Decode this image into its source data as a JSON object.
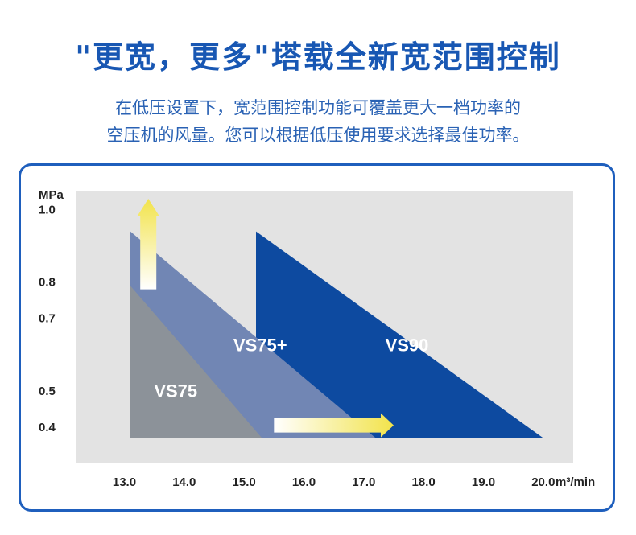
{
  "header": {
    "title": "\"更宽，更多\"塔载全新宽范围控制",
    "desc_line1": "在低压设置下，宽范围控制功能可覆盖更大一档功率的",
    "desc_line2": "空压机的风量。您可以根据低压使用要求选择最佳功率。"
  },
  "chart_data": {
    "type": "area",
    "ylabel": "MPa",
    "xlabel": "m³/min",
    "xlim": [
      12.2,
      20.5
    ],
    "ylim": [
      0.3,
      1.05
    ],
    "x_ticks": [
      13.0,
      14.0,
      15.0,
      16.0,
      17.0,
      18.0,
      19.0,
      20.0
    ],
    "x_tick_labels": [
      "13.0",
      "14.0",
      "15.0",
      "16.0",
      "17.0",
      "18.0",
      "19.0",
      "20.0"
    ],
    "y_ticks": [
      1.0,
      0.8,
      0.7,
      0.5,
      0.4
    ],
    "y_tick_labels": [
      "1.0",
      "0.8",
      "0.7",
      "0.5",
      "0.4"
    ],
    "baseline_pressure": 0.37,
    "series": [
      {
        "name": "VS90",
        "color": "#0d4aa0",
        "points": [
          [
            15.2,
            0.94
          ],
          [
            15.2,
            0.37
          ],
          [
            20.0,
            0.37
          ]
        ]
      },
      {
        "name": "VS75+",
        "color": "#7186b4",
        "points": [
          [
            13.1,
            0.94
          ],
          [
            13.1,
            0.37
          ],
          [
            17.2,
            0.37
          ]
        ]
      },
      {
        "name": "VS75",
        "color": "#8c9299",
        "points": [
          [
            13.1,
            0.79
          ],
          [
            13.1,
            0.37
          ],
          [
            15.3,
            0.37
          ]
        ]
      }
    ],
    "arrows": [
      {
        "direction": "up",
        "meaning": "pressure"
      },
      {
        "direction": "right",
        "meaning": "flow"
      }
    ]
  },
  "colors": {
    "title": "#1857b3",
    "text": "#2a62b4",
    "frame": "#1f5fbd",
    "plot_bg": "#e3e3e3",
    "arrow_tip": "#f2e34b"
  }
}
